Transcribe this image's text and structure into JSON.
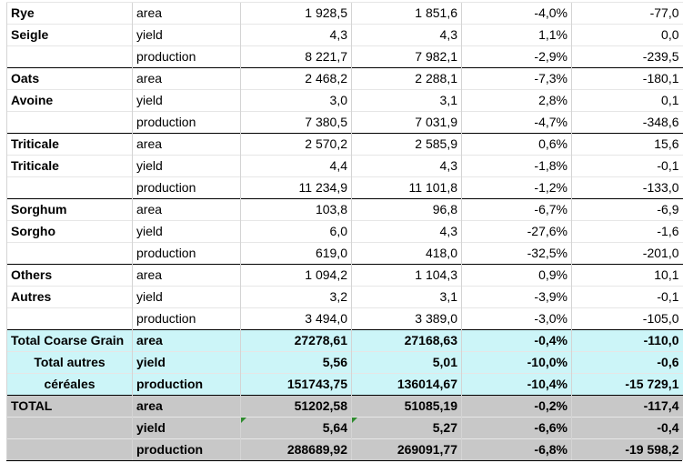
{
  "groups": [
    {
      "name_en": "Rye",
      "name_fr": "Seigle",
      "rows": [
        {
          "metric": "area",
          "v1": "1 928,5",
          "v2": "1 851,6",
          "pct": "-4,0%",
          "diff": "-77,0"
        },
        {
          "metric": "yield",
          "v1": "4,3",
          "v2": "4,3",
          "pct": "1,1%",
          "diff": "0,0"
        },
        {
          "metric": "production",
          "v1": "8 221,7",
          "v2": "7 982,1",
          "pct": "-2,9%",
          "diff": "-239,5"
        }
      ]
    },
    {
      "name_en": "Oats",
      "name_fr": "Avoine",
      "rows": [
        {
          "metric": "area",
          "v1": "2 468,2",
          "v2": "2 288,1",
          "pct": "-7,3%",
          "diff": "-180,1"
        },
        {
          "metric": "yield",
          "v1": "3,0",
          "v2": "3,1",
          "pct": "2,8%",
          "diff": "0,1"
        },
        {
          "metric": "production",
          "v1": "7 380,5",
          "v2": "7 031,9",
          "pct": "-4,7%",
          "diff": "-348,6"
        }
      ]
    },
    {
      "name_en": "Triticale",
      "name_fr": "Triticale",
      "rows": [
        {
          "metric": "area",
          "v1": "2 570,2",
          "v2": "2 585,9",
          "pct": "0,6%",
          "diff": "15,6"
        },
        {
          "metric": "yield",
          "v1": "4,4",
          "v2": "4,3",
          "pct": "-1,8%",
          "diff": "-0,1"
        },
        {
          "metric": "production",
          "v1": "11 234,9",
          "v2": "11 101,8",
          "pct": "-1,2%",
          "diff": "-133,0"
        }
      ]
    },
    {
      "name_en": "Sorghum",
      "name_fr": "Sorgho",
      "rows": [
        {
          "metric": "area",
          "v1": "103,8",
          "v2": "96,8",
          "pct": "-6,7%",
          "diff": "-6,9"
        },
        {
          "metric": "yield",
          "v1": "6,0",
          "v2": "4,3",
          "pct": "-27,6%",
          "diff": "-1,6"
        },
        {
          "metric": "production",
          "v1": "619,0",
          "v2": "418,0",
          "pct": "-32,5%",
          "diff": "-201,0"
        }
      ]
    },
    {
      "name_en": "Others",
      "name_fr": "Autres",
      "rows": [
        {
          "metric": "area",
          "v1": "1 094,2",
          "v2": "1 104,3",
          "pct": "0,9%",
          "diff": "10,1"
        },
        {
          "metric": "yield",
          "v1": "3,2",
          "v2": "3,1",
          "pct": "-3,9%",
          "diff": "-0,1"
        },
        {
          "metric": "production",
          "v1": "3 494,0",
          "v2": "3 389,0",
          "pct": "-3,0%",
          "diff": "-105,0"
        }
      ]
    }
  ],
  "total_coarse": {
    "label_line1": "Total Coarse Grain",
    "label_line2": "Total autres",
    "label_line3": "céréales",
    "rows": [
      {
        "metric": "area",
        "v1": "27278,61",
        "v2": "27168,63",
        "pct": "-0,4%",
        "diff": "-110,0"
      },
      {
        "metric": "yield",
        "v1": "5,56",
        "v2": "5,01",
        "pct": "-10,0%",
        "diff": "-0,6"
      },
      {
        "metric": "production",
        "v1": "151743,75",
        "v2": "136014,67",
        "pct": "-10,4%",
        "diff": "-15 729,1"
      }
    ]
  },
  "total": {
    "label": "TOTAL",
    "rows": [
      {
        "metric": "area",
        "v1": "51202,58",
        "v2": "51085,19",
        "pct": "-0,2%",
        "diff": "-117,4"
      },
      {
        "metric": "yield",
        "v1": "5,64",
        "v2": "5,27",
        "pct": "-6,6%",
        "diff": "-0,4"
      },
      {
        "metric": "production",
        "v1": "288689,92",
        "v2": "269091,77",
        "pct": "-6,8%",
        "diff": "-19 598,2"
      }
    ]
  },
  "colors": {
    "total_coarse_bg": "#ccf5f8",
    "total_bg": "#c8c8c8",
    "error_indicator": "#2e8b2e"
  }
}
